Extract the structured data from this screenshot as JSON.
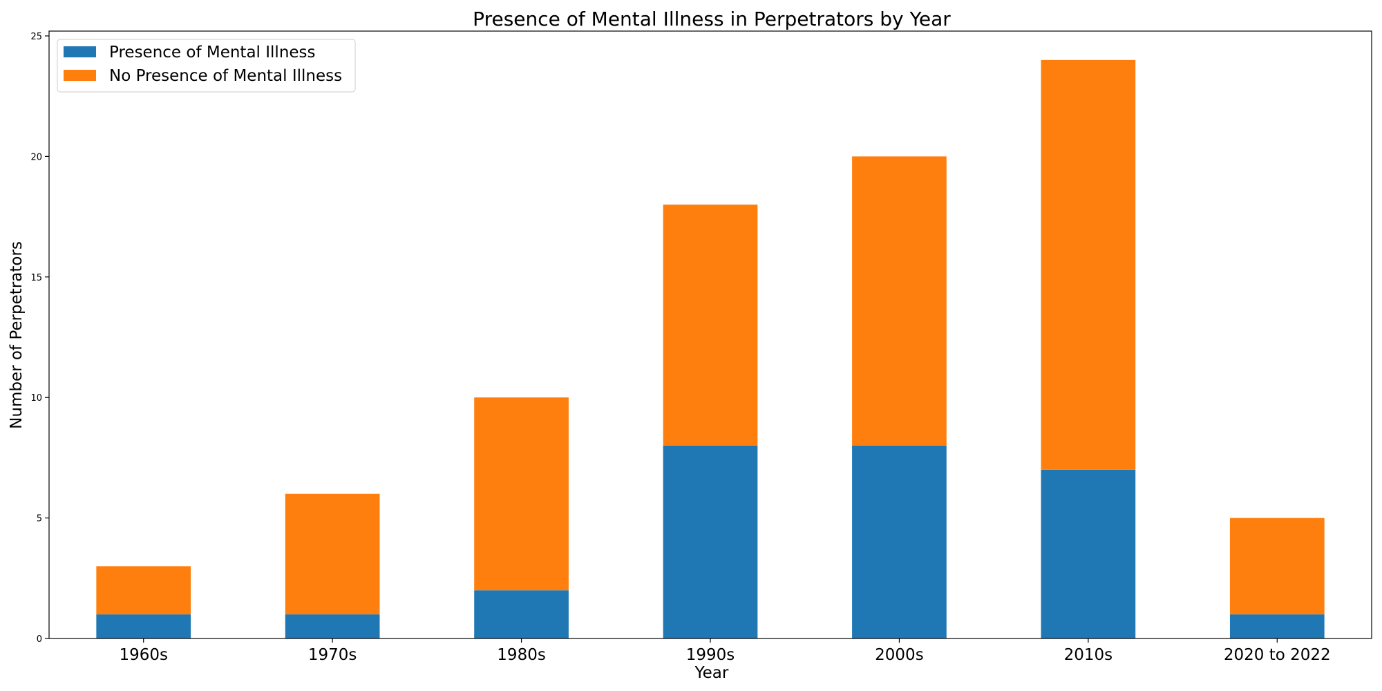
{
  "chart_data": {
    "type": "bar",
    "stacked": true,
    "title": "Presence of Mental Illness in Perpetrators by Year",
    "xlabel": "Year",
    "ylabel": "Number of Perpetrators",
    "categories": [
      "1960s",
      "1970s",
      "1980s",
      "1990s",
      "2000s",
      "2010s",
      "2020 to 2022"
    ],
    "series": [
      {
        "name": "Presence of Mental Illness",
        "color": "#1f77b4",
        "values": [
          1,
          1,
          2,
          8,
          8,
          7,
          1
        ]
      },
      {
        "name": "No Presence of Mental Illness",
        "color": "#ff7f0e",
        "values": [
          2,
          5,
          8,
          10,
          12,
          17,
          4
        ]
      }
    ],
    "ylim": [
      0,
      25.2
    ],
    "yticks": [
      0,
      5,
      10,
      15,
      20,
      25
    ],
    "grid": false,
    "legend_position": "top-left"
  }
}
